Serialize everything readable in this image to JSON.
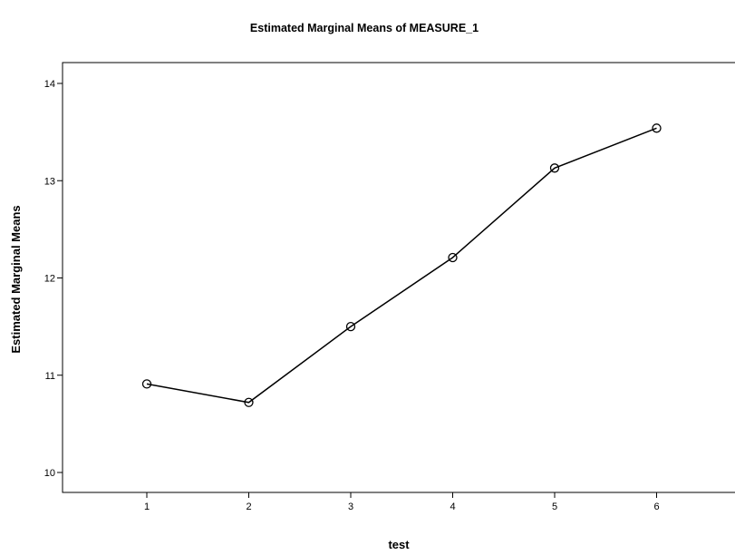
{
  "chart_data": {
    "type": "line",
    "title": "Estimated Marginal Means of MEASURE_1",
    "xlabel": "test",
    "ylabel": "Estimated Marginal Means",
    "categories": [
      "1",
      "2",
      "3",
      "4",
      "5",
      "6"
    ],
    "values": [
      10.91,
      10.72,
      11.5,
      12.21,
      13.13,
      13.54
    ],
    "ylim": [
      9.8,
      14.2
    ],
    "yticks": [
      "10",
      "11",
      "12",
      "13",
      "14"
    ],
    "grid": false,
    "line_color": "#000000",
    "marker": "open-circle"
  }
}
